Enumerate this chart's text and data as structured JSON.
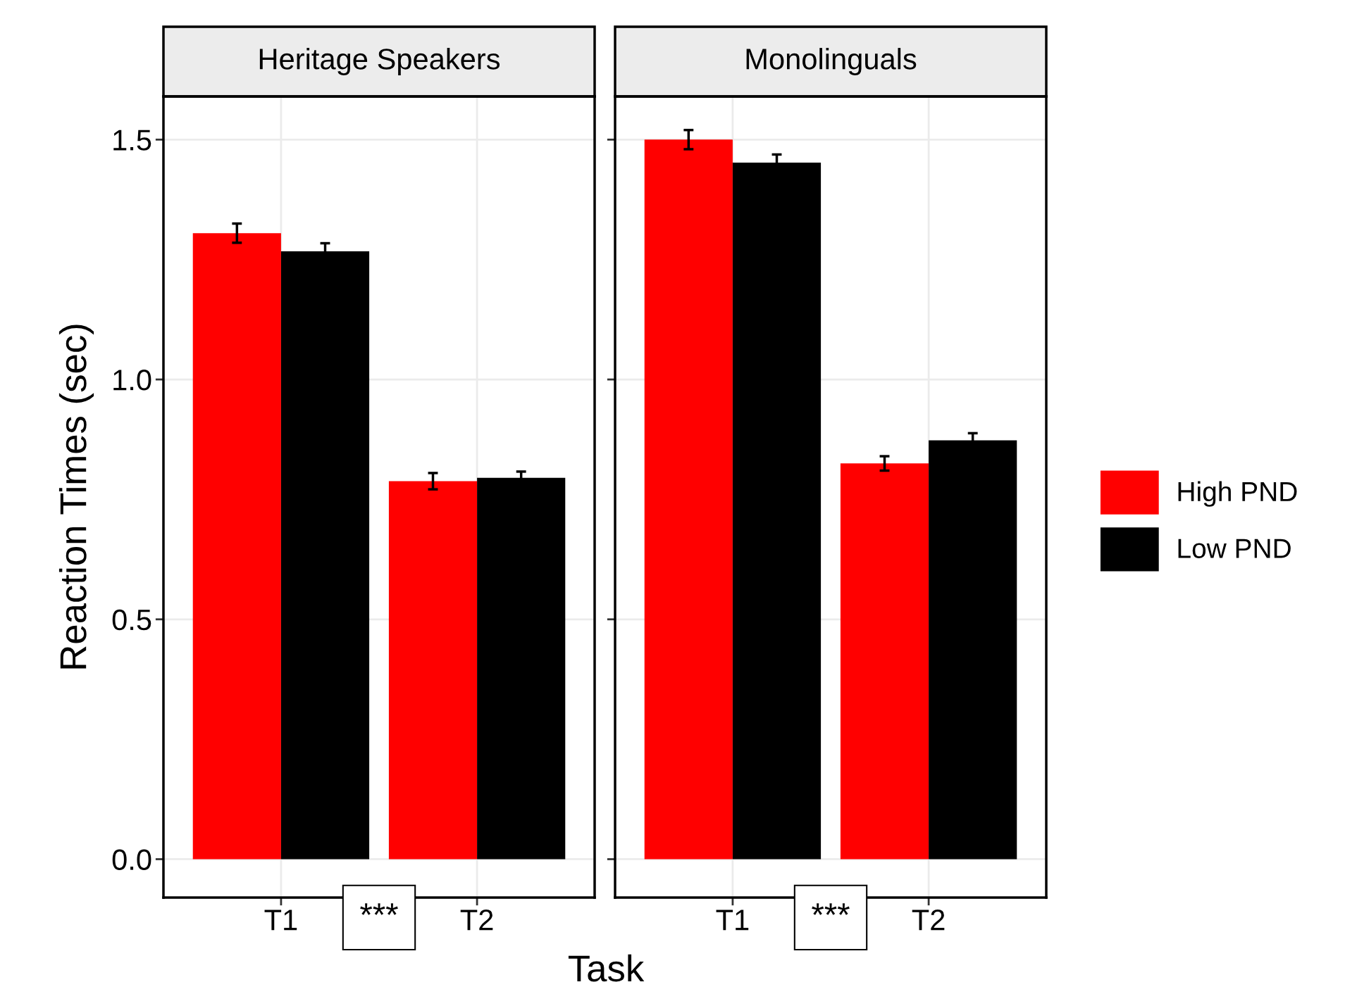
{
  "chart_data": [
    {
      "type": "bar",
      "title": "Heritage Speakers",
      "xlabel": "Task",
      "ylabel": "Reaction Times (sec)",
      "categories": [
        "T1",
        "T2"
      ],
      "series": [
        {
          "name": "High PND",
          "color": "#ff0000",
          "values": [
            1.305,
            0.788
          ],
          "errors": [
            0.02,
            0.017
          ]
        },
        {
          "name": "Low PND",
          "color": "#000000",
          "values": [
            1.267,
            0.795
          ],
          "errors": [
            0.017,
            0.013
          ]
        }
      ],
      "ylim": [
        -0.08,
        1.59
      ],
      "yticks": [
        {
          "value": 0,
          "label": "0.0"
        },
        0.5,
        {
          "value": 1,
          "label": "1.0"
        },
        1.5
      ],
      "grid": true,
      "legend": "right",
      "annotations": [
        "***"
      ]
    },
    {
      "type": "bar",
      "title": "Monolinguals",
      "categories": [
        "T1",
        "T2"
      ],
      "series": [
        {
          "color": "#ff0000",
          "values": [
            1.5,
            0.825
          ],
          "errors": [
            0.02,
            0.015
          ]
        },
        {
          "color": "#000000",
          "values": [
            1.452,
            0.873
          ],
          "errors": [
            0.017,
            0.015
          ]
        }
      ],
      "ylim": [
        -0.08,
        1.59
      ],
      "yticks": [
        0,
        0.5,
        1,
        1.5
      ],
      "grid": true,
      "tick_labels": "x",
      "annotations": [
        "***"
      ]
    }
  ]
}
